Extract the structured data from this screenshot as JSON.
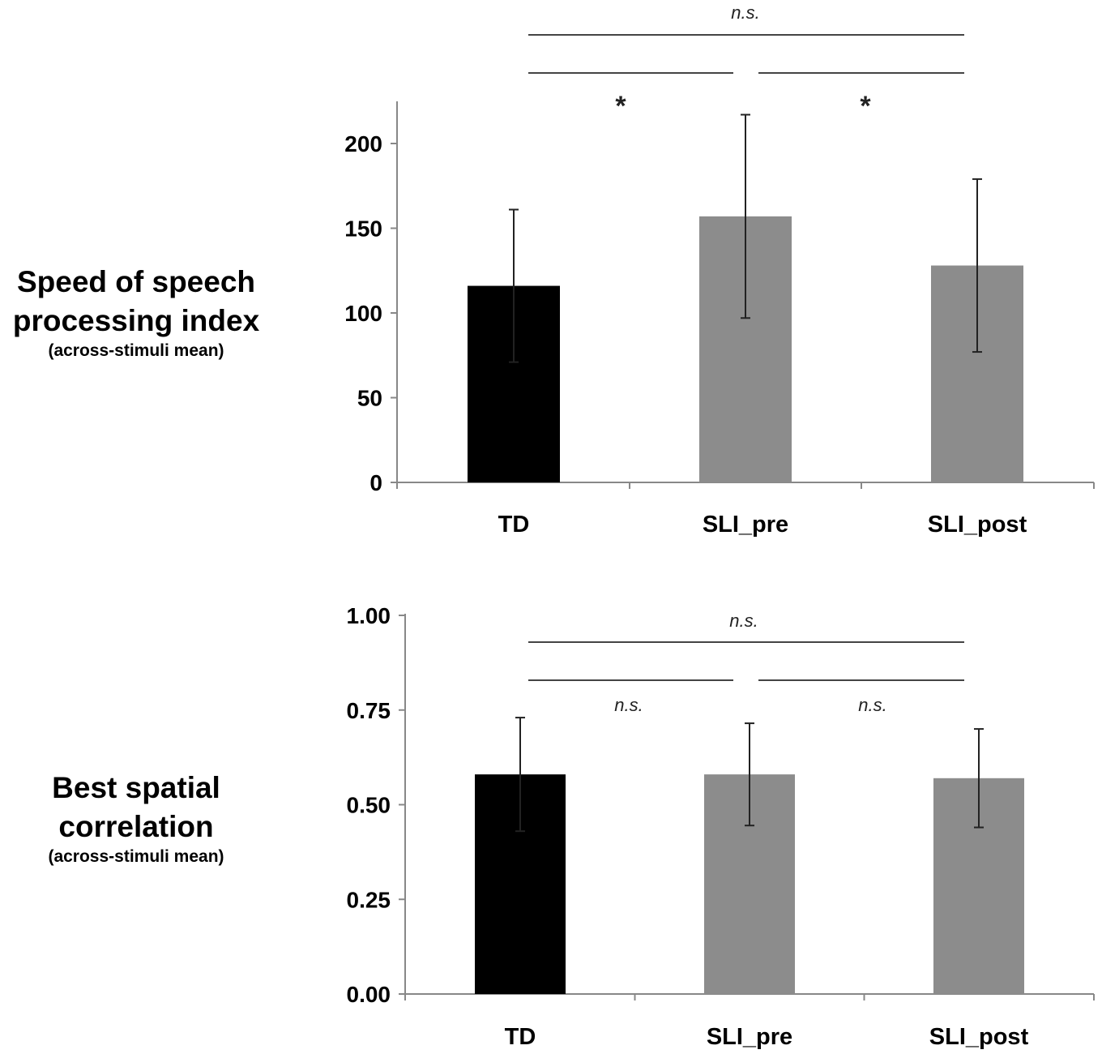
{
  "chart_data": [
    {
      "type": "bar",
      "ylabel": "Speed of speech processing index",
      "ylabel_note": "(across-stimuli mean)",
      "categories": [
        "TD",
        "SLI_pre",
        "SLI_post"
      ],
      "values": [
        116,
        157,
        128
      ],
      "error": [
        45,
        60,
        51
      ],
      "ylim": [
        0,
        225
      ],
      "yticks": [
        "0",
        "50",
        "100",
        "150",
        "200"
      ],
      "ytick_values": [
        0,
        50,
        100,
        150,
        200
      ],
      "bar_colors": [
        "#000000",
        "#8c8c8c",
        "#8c8c8c"
      ],
      "significance": [
        {
          "from": "TD",
          "to": "SLI_post",
          "label": "n.s."
        },
        {
          "from": "TD",
          "to": "SLI_pre",
          "label": "*"
        },
        {
          "from": "SLI_pre",
          "to": "SLI_post",
          "label": "*"
        }
      ]
    },
    {
      "type": "bar",
      "ylabel": "Best spatial correlation",
      "ylabel_note": "(across-stimuli mean)",
      "categories": [
        "TD",
        "SLI_pre",
        "SLI_post"
      ],
      "values": [
        0.58,
        0.58,
        0.57
      ],
      "error": [
        0.15,
        0.135,
        0.13
      ],
      "ylim": [
        0,
        1.0
      ],
      "yticks": [
        "0.00",
        "0.25",
        "0.50",
        "0.75",
        "1.00"
      ],
      "ytick_values": [
        0,
        0.25,
        0.5,
        0.75,
        1.0
      ],
      "bar_colors": [
        "#000000",
        "#8c8c8c",
        "#8c8c8c"
      ],
      "significance": [
        {
          "from": "TD",
          "to": "SLI_post",
          "label": "n.s."
        },
        {
          "from": "TD",
          "to": "SLI_pre",
          "label": "n.s."
        },
        {
          "from": "SLI_pre",
          "to": "SLI_post",
          "label": "n.s."
        }
      ]
    }
  ]
}
